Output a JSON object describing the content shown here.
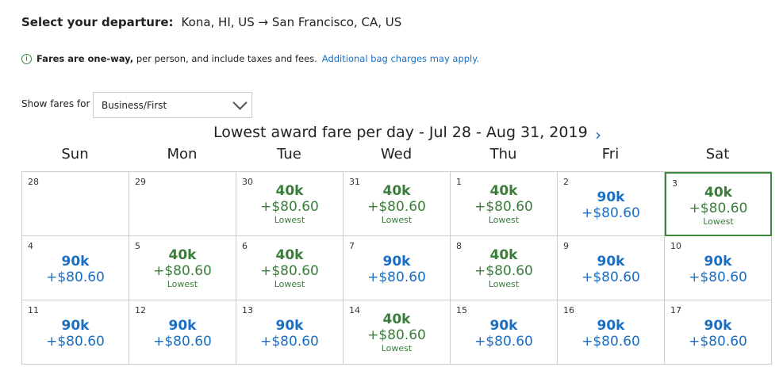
{
  "header": {
    "label": "Select your departure:",
    "route": "Kona, HI, US → San Francisco, CA, US"
  },
  "notice": {
    "icon": "info-icon",
    "bold": "Fares are one-way,",
    "text": " per person, and include taxes and fees.",
    "link": "Additional bag charges may apply."
  },
  "filter": {
    "label": "Show fares for",
    "value": "Business/First"
  },
  "calendar": {
    "title": "Lowest award fare per day - Jul 28 - Aug 31, 2019",
    "next_icon": "chevron-right-icon",
    "weekdays": [
      "Sun",
      "Mon",
      "Tue",
      "Wed",
      "Thu",
      "Fri",
      "Sat"
    ],
    "colors": {
      "lowest": "#3a7d3a",
      "regular": "#1a6fc4"
    },
    "selected_day": "3",
    "days": [
      {
        "d": "28"
      },
      {
        "d": "29"
      },
      {
        "d": "30",
        "pts": "40k",
        "tax": "+$80.60",
        "note": "Lowest"
      },
      {
        "d": "31",
        "pts": "40k",
        "tax": "+$80.60",
        "note": "Lowest"
      },
      {
        "d": "1",
        "pts": "40k",
        "tax": "+$80.60",
        "note": "Lowest"
      },
      {
        "d": "2",
        "pts": "90k",
        "tax": "+$80.60"
      },
      {
        "d": "3",
        "pts": "40k",
        "tax": "+$80.60",
        "note": "Lowest"
      },
      {
        "d": "4",
        "pts": "90k",
        "tax": "+$80.60"
      },
      {
        "d": "5",
        "pts": "40k",
        "tax": "+$80.60",
        "note": "Lowest"
      },
      {
        "d": "6",
        "pts": "40k",
        "tax": "+$80.60",
        "note": "Lowest"
      },
      {
        "d": "7",
        "pts": "90k",
        "tax": "+$80.60"
      },
      {
        "d": "8",
        "pts": "40k",
        "tax": "+$80.60",
        "note": "Lowest"
      },
      {
        "d": "9",
        "pts": "90k",
        "tax": "+$80.60"
      },
      {
        "d": "10",
        "pts": "90k",
        "tax": "+$80.60"
      },
      {
        "d": "11",
        "pts": "90k",
        "tax": "+$80.60"
      },
      {
        "d": "12",
        "pts": "90k",
        "tax": "+$80.60"
      },
      {
        "d": "13",
        "pts": "90k",
        "tax": "+$80.60"
      },
      {
        "d": "14",
        "pts": "40k",
        "tax": "+$80.60",
        "note": "Lowest"
      },
      {
        "d": "15",
        "pts": "90k",
        "tax": "+$80.60"
      },
      {
        "d": "16",
        "pts": "90k",
        "tax": "+$80.60"
      },
      {
        "d": "17",
        "pts": "90k",
        "tax": "+$80.60"
      }
    ]
  }
}
